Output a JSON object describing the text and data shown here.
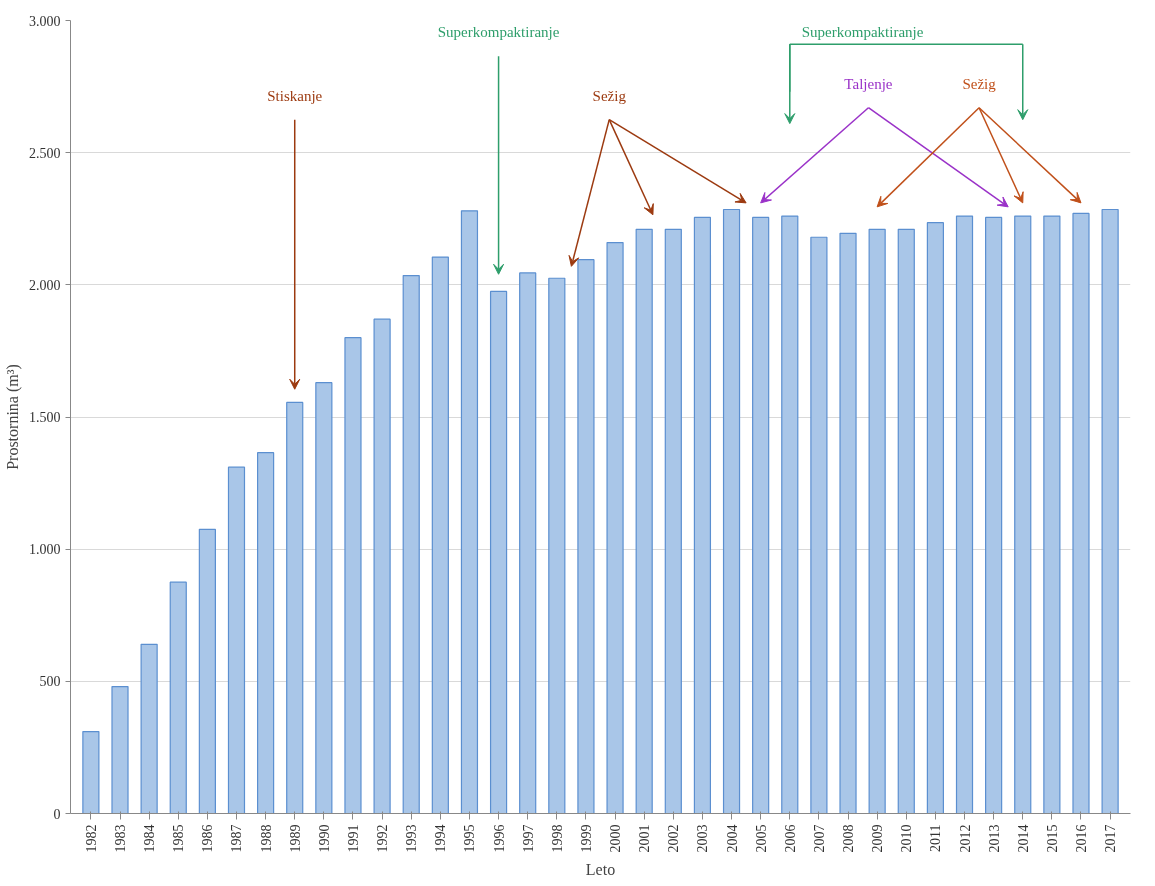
{
  "chart_data": {
    "type": "bar",
    "xlabel": "Leto",
    "ylabel": "Prostornina (m³)",
    "categories": [
      "1982",
      "1983",
      "1984",
      "1985",
      "1986",
      "1987",
      "1988",
      "1989",
      "1990",
      "1991",
      "1992",
      "1993",
      "1994",
      "1995",
      "1996",
      "1997",
      "1998",
      "1999",
      "2000",
      "2001",
      "2002",
      "2003",
      "2004",
      "2005",
      "2006",
      "2007",
      "2008",
      "2009",
      "2010",
      "2011",
      "2012",
      "2013",
      "2014",
      "2015",
      "2016",
      "2017"
    ],
    "values": [
      310,
      480,
      640,
      875,
      1075,
      1310,
      1365,
      1555,
      1630,
      1800,
      1870,
      2035,
      2105,
      2280,
      1975,
      2045,
      2025,
      2095,
      2160,
      2210,
      2210,
      2255,
      2285,
      2255,
      2260,
      2180,
      2195,
      2210,
      2210,
      2235,
      2260,
      2255,
      2260,
      2260,
      2270,
      2285
    ],
    "color": "#a9c6e8",
    "ylim": [
      0,
      3000
    ],
    "yticks": [
      0,
      {
        "value": 500,
        "label": "500"
      },
      {
        "value": 1000,
        "label": "1.000"
      },
      {
        "value": 1500,
        "label": "1.500"
      },
      {
        "value": 2000,
        "label": "2.000"
      },
      {
        "value": 2500,
        "label": "2.500"
      },
      {
        "value": 3000,
        "label": "3.000"
      }
    ],
    "grid": "y",
    "annotations": [
      "Stiskanje",
      "Superkompaktiranje",
      "Sežig",
      "Superkompaktiranje",
      "Taljenje",
      "Sežig"
    ]
  }
}
